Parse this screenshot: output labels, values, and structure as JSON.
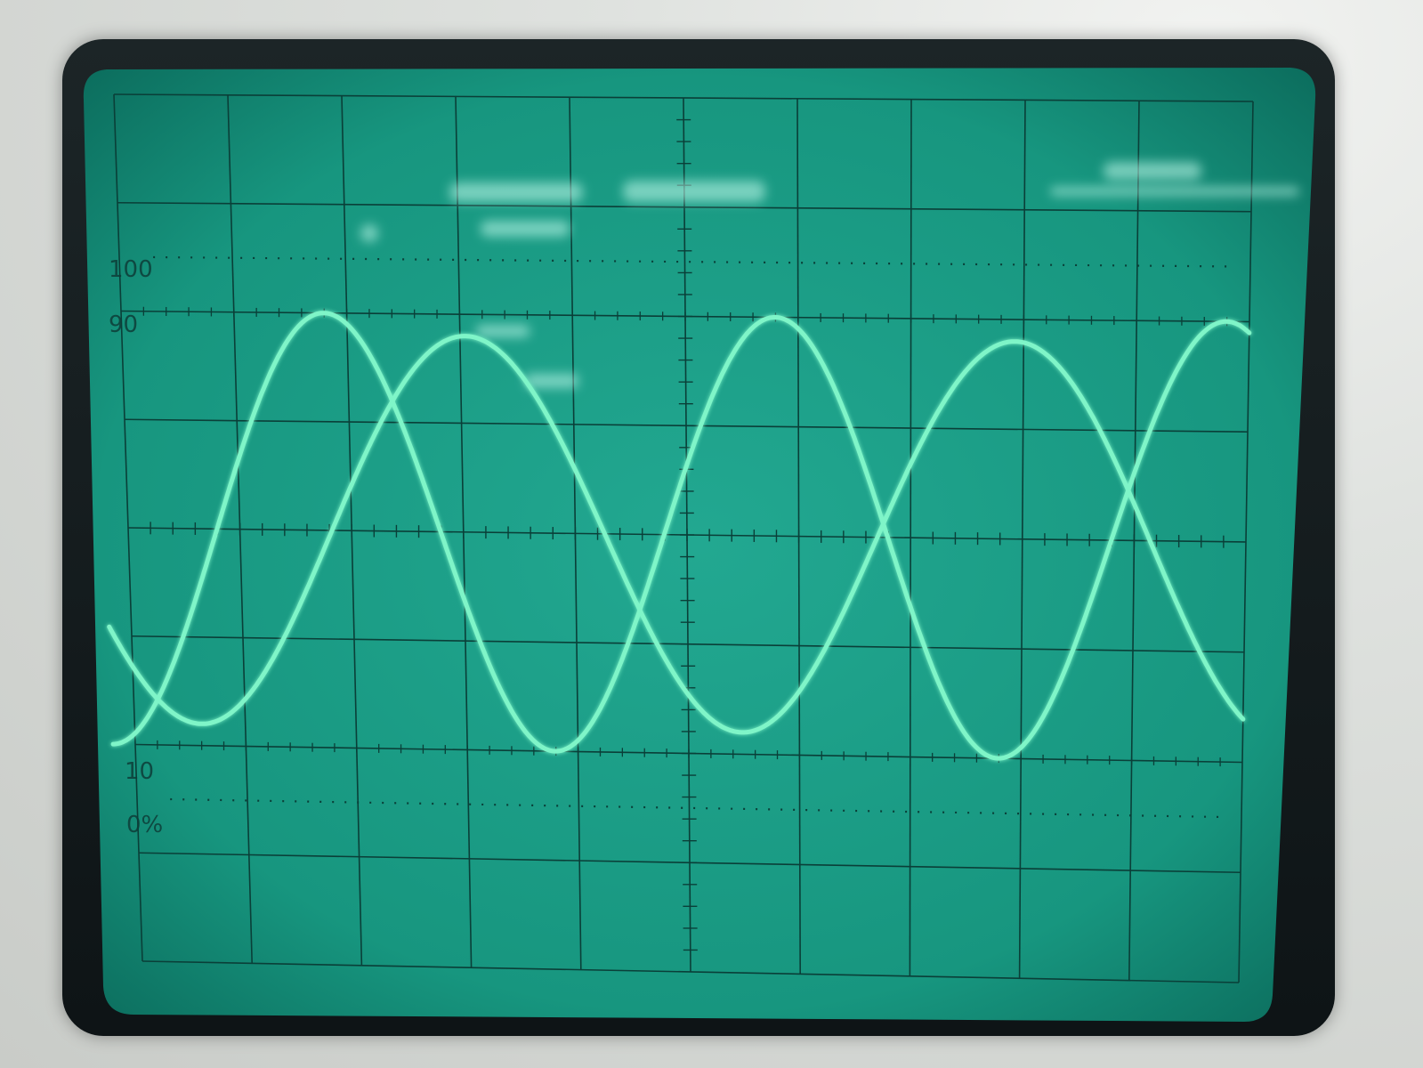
{
  "graticule": {
    "labels": {
      "top": "100",
      "upper": "90",
      "lower": "10",
      "bottom": "0%"
    }
  },
  "colors": {
    "screen": "#17a08a",
    "screen_dark": "#0f7f6d",
    "grid": "#0a3f38",
    "trace": "#7ff5c8",
    "bezel": "#141c1e",
    "housing": "#dfe2df"
  },
  "traces": [
    {
      "id": "trace-a",
      "cycles": 2.5,
      "phase_rad": -1.25,
      "amplitude_fraction": 0.5
    },
    {
      "id": "trace-b",
      "cycles": 2.05,
      "phase_rad": -2.35,
      "amplitude_fraction": 0.45
    }
  ]
}
